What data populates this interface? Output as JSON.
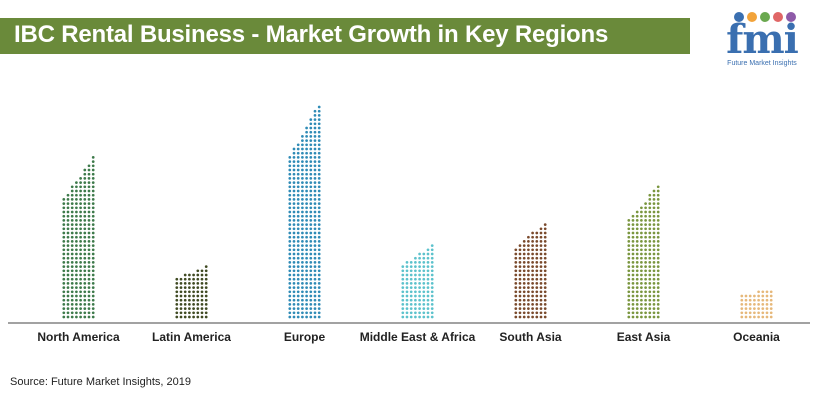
{
  "header": {
    "title": "IBC Rental Business - Market Growth in Key Regions"
  },
  "logo": {
    "text": "fmi",
    "subtitle": "Future Market Insights",
    "dot_colors": [
      "#3a6fb0",
      "#f2a33a",
      "#6aa84f",
      "#e06666",
      "#8e5aa8"
    ]
  },
  "chart_data": {
    "type": "bar",
    "title": "IBC Rental Business - Market Growth in Key Regions",
    "xlabel": "",
    "ylabel": "",
    "categories": [
      "North America",
      "Latin America",
      "Europe",
      "Middle East & Africa",
      "South Asia",
      "East Asia",
      "Oceania"
    ],
    "values": [
      5.7,
      1.9,
      7.6,
      2.6,
      3.4,
      4.7,
      1.1
    ],
    "colors": [
      "#3d7a4a",
      "#3f4a22",
      "#2f8bb6",
      "#5cc2cc",
      "#7a4a2c",
      "#7a963f",
      "#e6b87a"
    ],
    "ylim": [
      0,
      8
    ],
    "grid": false,
    "legend": "none"
  },
  "footer": {
    "source": "Source: Future Market Insights, 2019"
  }
}
